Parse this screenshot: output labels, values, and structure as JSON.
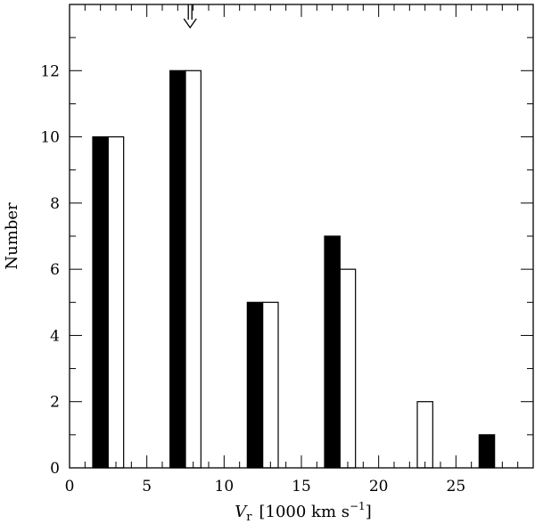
{
  "chart_data": {
    "type": "bar",
    "ylabel": "Number",
    "xlabel_prefix": "V",
    "xlabel_sub": "r",
    "xlabel_units": "[1000  km  s",
    "xlabel_sup": "−1",
    "xlabel_close": "]",
    "xlim": [
      0,
      30
    ],
    "ylim": [
      0,
      14
    ],
    "x_ticks": [
      0,
      5,
      10,
      15,
      20,
      25
    ],
    "y_ticks": [
      0,
      2,
      4,
      6,
      8,
      10,
      12
    ],
    "x_minor_step": 1,
    "y_minor_step": 1,
    "grid": false,
    "bin_centers": [
      2.5,
      7.5,
      12.5,
      17.5,
      22.5,
      27.5
    ],
    "series": [
      {
        "style": "filled",
        "color": "#000000",
        "x_start": [
          1.5,
          6.5,
          11.5,
          16.5,
          21.5,
          26.5
        ],
        "values": [
          10,
          12,
          5,
          7,
          0,
          1
        ]
      },
      {
        "style": "open",
        "color": "#ffffff",
        "x_start": [
          2.5,
          7.5,
          12.5,
          17.5,
          22.5,
          27.5
        ],
        "values": [
          10,
          12,
          5,
          6,
          2,
          0
        ]
      }
    ],
    "annotations": [
      {
        "kind": "down-arrow",
        "x": 7.8,
        "points_to_y": 13.3
      }
    ]
  }
}
